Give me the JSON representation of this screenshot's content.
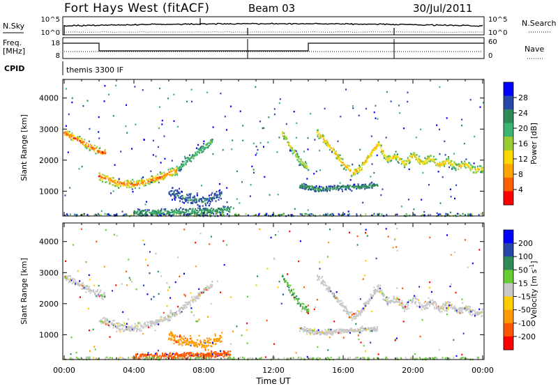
{
  "header": {
    "station": "Fort Hays West (fitACF)",
    "beam": "Beam 03",
    "date": "30/Jul/2011"
  },
  "nsky_panel": {
    "left_label": "N.Sky",
    "left_ticks": [
      "10^5",
      "10^0"
    ],
    "right_label": "N.Search",
    "right_ticks": [
      "10^5",
      "10^0"
    ]
  },
  "freq_panel": {
    "left_label_1": "Freq.",
    "left_label_2": "[MHz]",
    "left_ticks": [
      "18",
      "8"
    ],
    "right_label": "Nave",
    "right_ticks": [
      "60",
      "0"
    ]
  },
  "cpid_panel": {
    "label": "CPID",
    "text": "themis 3300 IF"
  },
  "x_axis": {
    "label": "Time UT",
    "ticks": [
      "00:00",
      "04:00",
      "08:00",
      "12:00",
      "16:00",
      "20:00",
      "00:00"
    ]
  },
  "colors": {
    "power_scale": [
      "#0000ff",
      "#2848a8",
      "#2e8b57",
      "#3cb371",
      "#9acd32",
      "#ffd700",
      "#ffa500",
      "#ff6000",
      "#ff0000"
    ],
    "velocity_scale": [
      "#0000ff",
      "#2848a8",
      "#2e8b57",
      "#66cc33",
      "#c8c8c8",
      "#ffcc00",
      "#ff9900",
      "#ff5500",
      "#ff0000"
    ]
  },
  "chart_data": [
    {
      "type": "heatmap",
      "panel": "power",
      "xlabel": "",
      "ylabel": "Slant Range [km]",
      "xlim_hours": [
        0,
        24
      ],
      "ylim": [
        200,
        4600
      ],
      "y_ticks": [
        1000,
        2000,
        3000,
        4000
      ],
      "colorbar_label": "Power [dB]",
      "colorbar_ticks": [
        "28",
        "24",
        "20",
        "16",
        "12",
        "8",
        "4"
      ],
      "tracks": [
        {
          "x": [
            0,
            0.5,
            1,
            1.5,
            2,
            2.3
          ],
          "y": [
            2900,
            2750,
            2600,
            2450,
            2300,
            2250
          ],
          "width": 130,
          "peak": 0.95
        },
        {
          "x": [
            2,
            2.5,
            3,
            3.5,
            4,
            4.5,
            5,
            5.5,
            6,
            6.5
          ],
          "y": [
            1500,
            1400,
            1300,
            1260,
            1240,
            1300,
            1380,
            1480,
            1600,
            1700
          ],
          "width": 140,
          "peak": 0.9
        },
        {
          "x": [
            6.5,
            7,
            7.5,
            8,
            8.5
          ],
          "y": [
            1750,
            2000,
            2200,
            2450,
            2650
          ],
          "width": 120,
          "peak": 0.45
        },
        {
          "x": [
            6,
            6.5,
            7,
            7.5,
            8,
            8.5,
            9
          ],
          "y": [
            1000,
            900,
            800,
            750,
            700,
            800,
            900
          ],
          "width": 200,
          "peak": 0.2
        },
        {
          "x": [
            4,
            5,
            6,
            7,
            8,
            9,
            9.5
          ],
          "y": [
            320,
            330,
            340,
            360,
            380,
            400,
            420
          ],
          "width": 120,
          "peak": 0.35
        },
        {
          "x": [
            12.5,
            13,
            13.5,
            14
          ],
          "y": [
            2900,
            2400,
            2000,
            1750
          ],
          "width": 130,
          "peak": 0.6
        },
        {
          "x": [
            13.5,
            14,
            14.5,
            15,
            15.5,
            16,
            16.5,
            17,
            17.5,
            18
          ],
          "y": [
            1200,
            1150,
            1100,
            1100,
            1120,
            1150,
            1150,
            1170,
            1200,
            1200
          ],
          "width": 90,
          "peak": 0.3
        },
        {
          "x": [
            14.5,
            15,
            15.5,
            16,
            16.5,
            17,
            17.5,
            18,
            18.5
          ],
          "y": [
            2900,
            2600,
            2250,
            1900,
            1600,
            1750,
            2200,
            2550,
            2050
          ],
          "width": 140,
          "peak": 0.75
        },
        {
          "x": [
            18.5,
            19,
            19.5,
            20,
            20.5,
            21,
            21.5,
            22,
            22.5,
            23,
            23.5,
            24
          ],
          "y": [
            2050,
            2150,
            1900,
            2200,
            1900,
            2100,
            1850,
            2000,
            1800,
            1900,
            1700,
            1750
          ],
          "width": 140,
          "peak": 0.7
        }
      ]
    },
    {
      "type": "heatmap",
      "panel": "velocity",
      "xlabel": "Time UT",
      "ylabel": "Slant Range [km]",
      "xlim_hours": [
        0,
        24
      ],
      "ylim": [
        200,
        4600
      ],
      "y_ticks": [
        1000,
        2000,
        3000,
        4000
      ],
      "colorbar_label": "Velocity [m s^-1]",
      "colorbar_ticks": [
        "200",
        "100",
        "50",
        "15",
        "-15",
        "-50",
        "-100",
        "-200"
      ],
      "tracks": [
        {
          "x": [
            0,
            0.5,
            1,
            1.5,
            2,
            2.3
          ],
          "y": [
            2900,
            2750,
            2600,
            2450,
            2300,
            2250
          ],
          "width": 130,
          "vel": 0
        },
        {
          "x": [
            2,
            2.5,
            3,
            3.5,
            4,
            4.5,
            5,
            5.5,
            6,
            6.5
          ],
          "y": [
            1500,
            1400,
            1300,
            1260,
            1240,
            1300,
            1380,
            1480,
            1600,
            1700
          ],
          "width": 140,
          "vel": 0
        },
        {
          "x": [
            6.5,
            7,
            7.5,
            8,
            8.5
          ],
          "y": [
            1750,
            2000,
            2200,
            2450,
            2650
          ],
          "width": 120,
          "vel": 0
        },
        {
          "x": [
            6,
            6.5,
            7,
            7.5,
            8,
            8.5,
            9
          ],
          "y": [
            1000,
            900,
            800,
            750,
            700,
            800,
            900
          ],
          "width": 200,
          "vel": -60
        },
        {
          "x": [
            4,
            5,
            6,
            7,
            8,
            9,
            9.5
          ],
          "y": [
            320,
            330,
            340,
            360,
            380,
            400,
            420
          ],
          "width": 120,
          "vel": -90
        },
        {
          "x": [
            12.5,
            13,
            13.5,
            14
          ],
          "y": [
            2900,
            2400,
            2000,
            1750
          ],
          "width": 130,
          "vel": 30
        },
        {
          "x": [
            13.5,
            14,
            14.5,
            15,
            15.5,
            16,
            16.5,
            17,
            17.5,
            18
          ],
          "y": [
            1200,
            1150,
            1100,
            1100,
            1120,
            1150,
            1150,
            1170,
            1200,
            1200
          ],
          "width": 90,
          "vel": 0
        },
        {
          "x": [
            14.5,
            15,
            15.5,
            16,
            16.5,
            17,
            17.5,
            18,
            18.5
          ],
          "y": [
            2900,
            2600,
            2250,
            1900,
            1600,
            1750,
            2200,
            2550,
            2050
          ],
          "width": 140,
          "vel": 0
        },
        {
          "x": [
            18.5,
            19,
            19.5,
            20,
            20.5,
            21,
            21.5,
            22,
            22.5,
            23,
            23.5,
            24
          ],
          "y": [
            2050,
            2150,
            1900,
            2200,
            1900,
            2100,
            1850,
            2000,
            1800,
            1900,
            1700,
            1750
          ],
          "width": 140,
          "vel": 0
        }
      ]
    }
  ]
}
